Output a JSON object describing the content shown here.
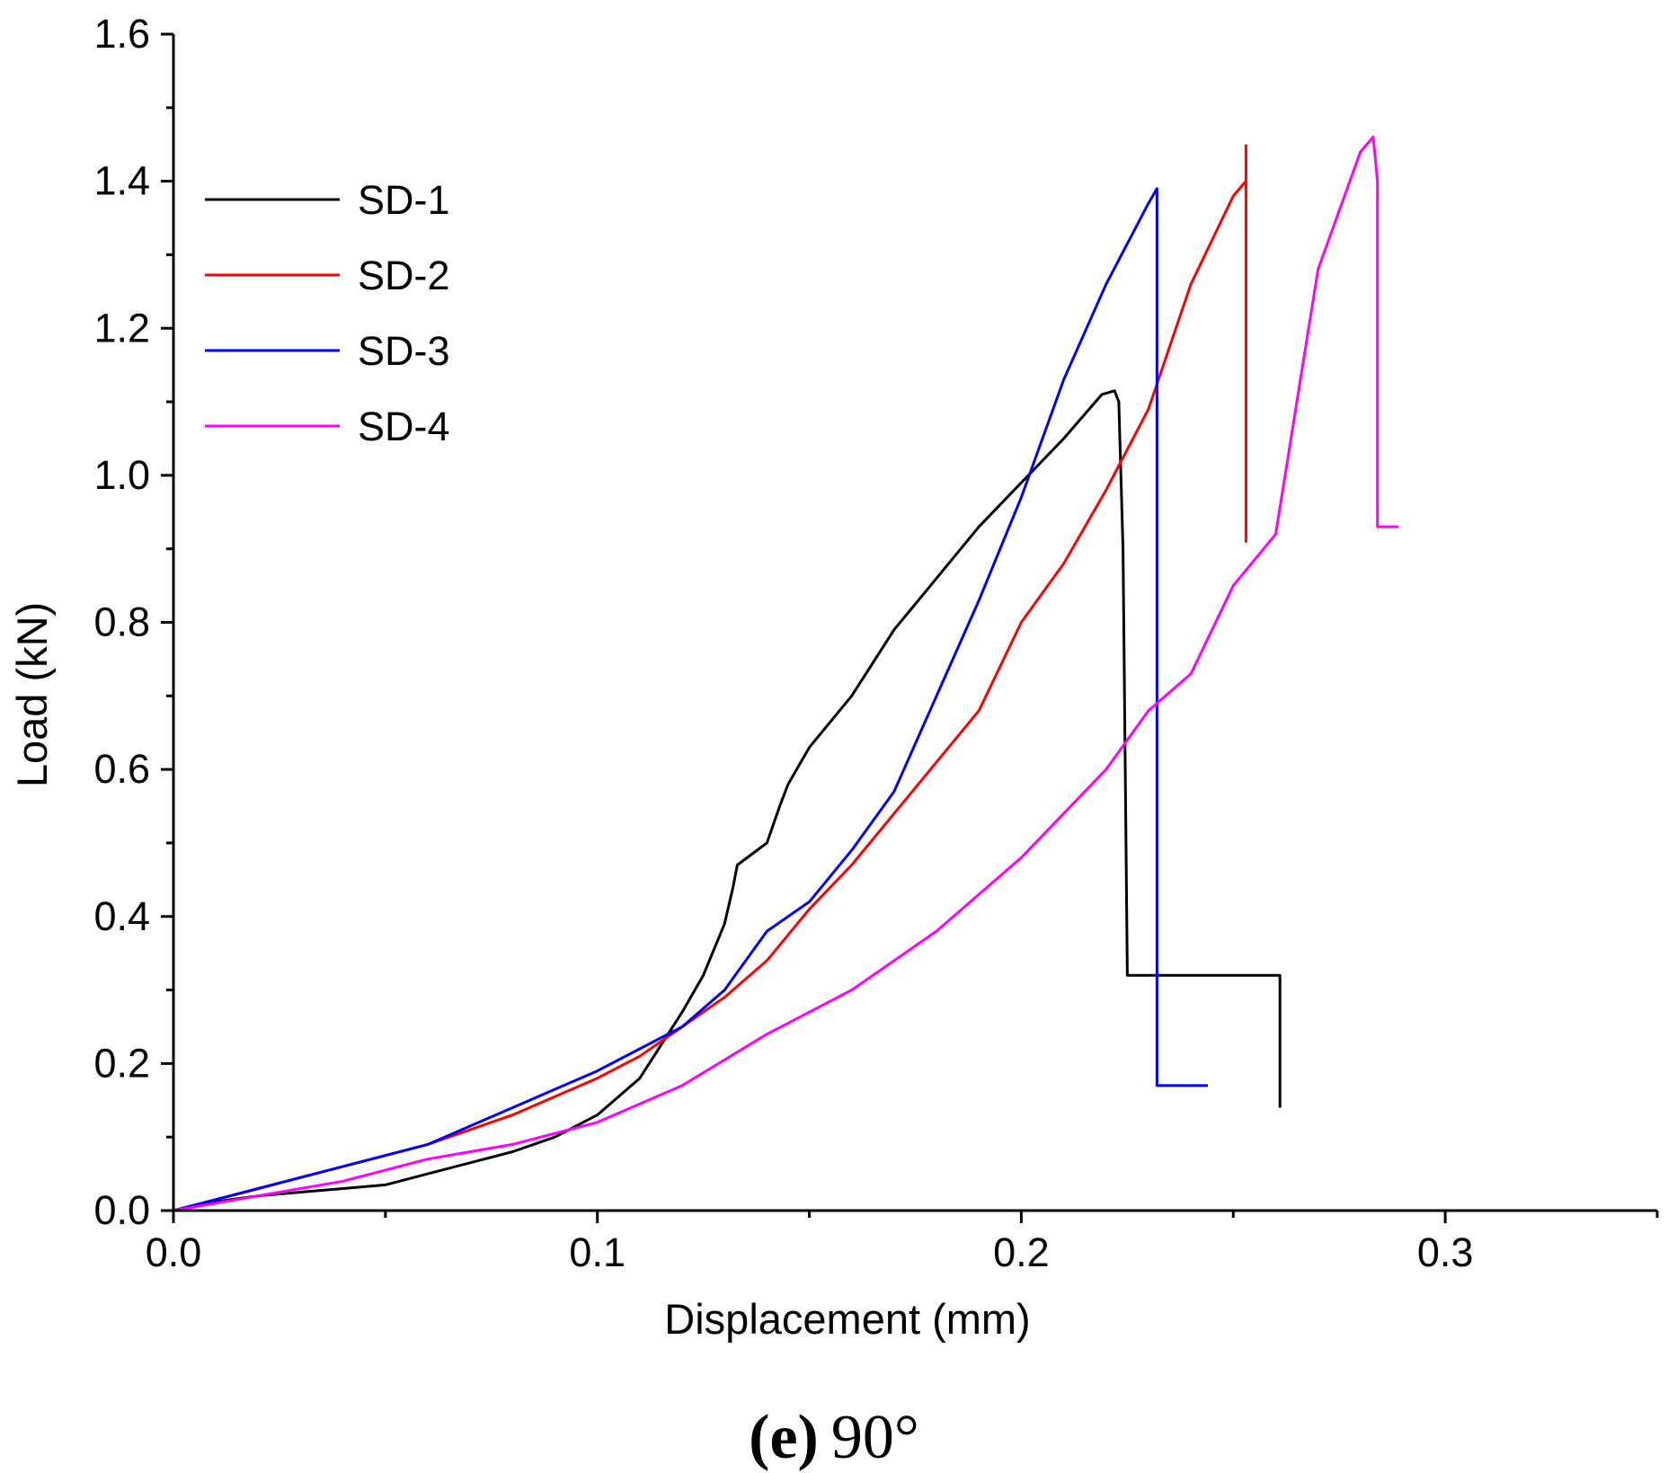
{
  "caption": {
    "letter": "(e)",
    "text": "90°"
  },
  "chart_data": {
    "type": "line",
    "xlabel": "Displacement (mm)",
    "ylabel": "Load (kN)",
    "xlim": [
      0,
      0.35
    ],
    "ylim": [
      0,
      1.6
    ],
    "xticks": [
      0.0,
      0.1,
      0.2,
      0.3
    ],
    "xtick_labels": [
      "0.0",
      "0.1",
      "0.2",
      "0.3"
    ],
    "yticks": [
      0.0,
      0.2,
      0.4,
      0.6,
      0.8,
      1.0,
      1.2,
      1.4,
      1.6
    ],
    "ytick_labels": [
      "0.0",
      "0.2",
      "0.4",
      "0.6",
      "0.8",
      "1.0",
      "1.2",
      "1.4",
      "1.6"
    ],
    "grid": false,
    "legend_position": "top-left",
    "series": [
      {
        "name": "SD-1",
        "color": "#000000",
        "points": [
          [
            0,
            0
          ],
          [
            0.01,
            0.012
          ],
          [
            0.02,
            0.02
          ],
          [
            0.03,
            0.025
          ],
          [
            0.04,
            0.03
          ],
          [
            0.05,
            0.035
          ],
          [
            0.06,
            0.05
          ],
          [
            0.07,
            0.065
          ],
          [
            0.08,
            0.08
          ],
          [
            0.09,
            0.1
          ],
          [
            0.1,
            0.13
          ],
          [
            0.11,
            0.18
          ],
          [
            0.12,
            0.27
          ],
          [
            0.125,
            0.32
          ],
          [
            0.13,
            0.39
          ],
          [
            0.132,
            0.44
          ],
          [
            0.133,
            0.47
          ],
          [
            0.14,
            0.5
          ],
          [
            0.143,
            0.55
          ],
          [
            0.145,
            0.58
          ],
          [
            0.15,
            0.63
          ],
          [
            0.16,
            0.7
          ],
          [
            0.17,
            0.79
          ],
          [
            0.18,
            0.86
          ],
          [
            0.19,
            0.93
          ],
          [
            0.2,
            0.99
          ],
          [
            0.21,
            1.05
          ],
          [
            0.219,
            1.11
          ],
          [
            0.222,
            1.115
          ],
          [
            0.223,
            1.1
          ],
          [
            0.224,
            0.9
          ],
          [
            0.225,
            0.32
          ],
          [
            0.261,
            0.32
          ],
          [
            0.261,
            0.14
          ]
        ]
      },
      {
        "name": "SD-2",
        "color": "#ff0000",
        "points": [
          [
            0,
            0
          ],
          [
            0.02,
            0.03
          ],
          [
            0.04,
            0.06
          ],
          [
            0.06,
            0.09
          ],
          [
            0.08,
            0.13
          ],
          [
            0.1,
            0.18
          ],
          [
            0.11,
            0.21
          ],
          [
            0.12,
            0.25
          ],
          [
            0.13,
            0.29
          ],
          [
            0.14,
            0.34
          ],
          [
            0.15,
            0.41
          ],
          [
            0.16,
            0.47
          ],
          [
            0.17,
            0.54
          ],
          [
            0.18,
            0.61
          ],
          [
            0.19,
            0.68
          ],
          [
            0.2,
            0.8
          ],
          [
            0.21,
            0.88
          ],
          [
            0.22,
            0.98
          ],
          [
            0.23,
            1.09
          ],
          [
            0.24,
            1.26
          ],
          [
            0.25,
            1.38
          ],
          [
            0.253,
            1.4
          ],
          [
            0.253,
            0.91
          ],
          [
            0.253,
            1.45
          ]
        ]
      },
      {
        "name": "SD-3",
        "color": "#0000ff",
        "points": [
          [
            0,
            0
          ],
          [
            0.02,
            0.03
          ],
          [
            0.04,
            0.06
          ],
          [
            0.06,
            0.09
          ],
          [
            0.08,
            0.14
          ],
          [
            0.1,
            0.19
          ],
          [
            0.11,
            0.22
          ],
          [
            0.12,
            0.25
          ],
          [
            0.13,
            0.3
          ],
          [
            0.14,
            0.38
          ],
          [
            0.15,
            0.42
          ],
          [
            0.16,
            0.49
          ],
          [
            0.17,
            0.57
          ],
          [
            0.18,
            0.7
          ],
          [
            0.19,
            0.83
          ],
          [
            0.2,
            0.97
          ],
          [
            0.21,
            1.13
          ],
          [
            0.22,
            1.26
          ],
          [
            0.23,
            1.37
          ],
          [
            0.232,
            1.39
          ],
          [
            0.232,
            0.17
          ],
          [
            0.244,
            0.17
          ]
        ]
      },
      {
        "name": "SD-4",
        "color": "#ff00ff",
        "points": [
          [
            0,
            0
          ],
          [
            0.02,
            0.02
          ],
          [
            0.04,
            0.04
          ],
          [
            0.06,
            0.07
          ],
          [
            0.08,
            0.09
          ],
          [
            0.1,
            0.12
          ],
          [
            0.12,
            0.17
          ],
          [
            0.14,
            0.24
          ],
          [
            0.16,
            0.3
          ],
          [
            0.18,
            0.38
          ],
          [
            0.2,
            0.48
          ],
          [
            0.22,
            0.6
          ],
          [
            0.23,
            0.68
          ],
          [
            0.24,
            0.73
          ],
          [
            0.25,
            0.85
          ],
          [
            0.26,
            0.92
          ],
          [
            0.27,
            1.28
          ],
          [
            0.28,
            1.44
          ],
          [
            0.283,
            1.46
          ],
          [
            0.284,
            1.4
          ],
          [
            0.284,
            0.93
          ],
          [
            0.289,
            0.93
          ]
        ]
      }
    ]
  }
}
